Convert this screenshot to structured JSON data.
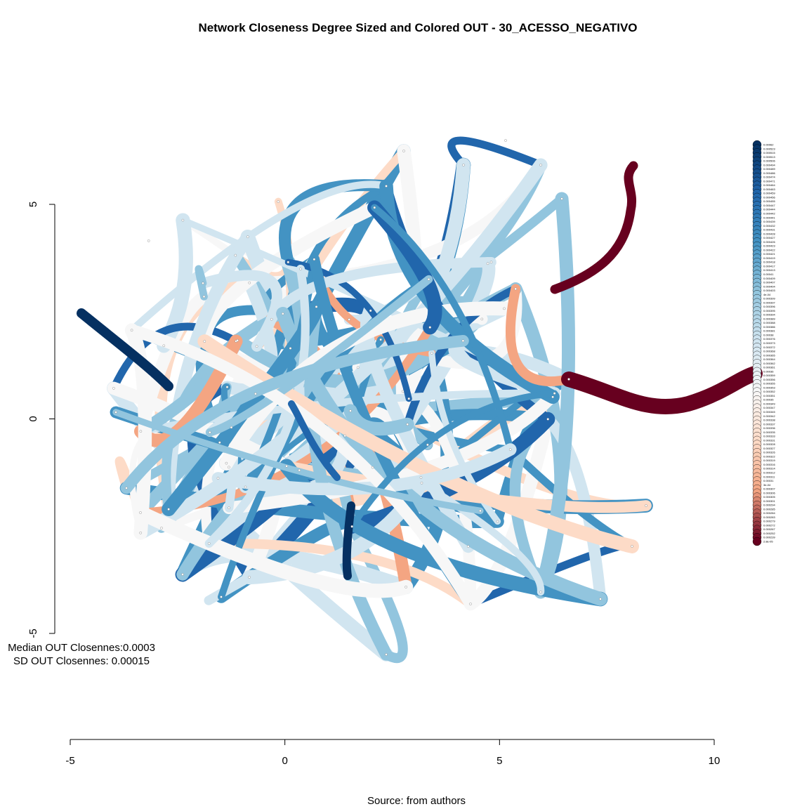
{
  "chart_data": {
    "type": "network",
    "title": "Network Closeness Degree Sized and Colored OUT - 30_ACESSO_NEGATIVO",
    "x_axis": {
      "ticks": [
        "-5",
        "0",
        "5",
        "10"
      ],
      "range": [
        -5,
        10
      ]
    },
    "y_axis": {
      "ticks": [
        "-5",
        "0",
        "5"
      ],
      "range": [
        -5,
        5
      ]
    },
    "stats": {
      "median_label": "Median OUT Closennes:0.0003",
      "sd_label": "SD OUT Closennes: 0.00015"
    },
    "caption": "Source: from authors",
    "legend_position": "right",
    "legend": [
      "0.00062",
      "0.000523",
      "0.000515",
      "0.000513",
      "0.000506",
      "0.000494",
      "0.000489",
      "0.000486",
      "0.000474",
      "0.000471",
      "0.000464",
      "0.000463",
      "0.000459",
      "0.000456",
      "0.000455",
      "0.000447",
      "0.000444",
      "0.000442",
      "0.000441",
      "0.000439",
      "0.000432",
      "0.000431",
      "0.000428",
      "0.000427",
      "0.000426",
      "0.000423",
      "0.000422",
      "0.000421",
      "0.000419",
      "0.000418",
      "0.000417",
      "0.000413",
      "0.00041",
      "0.000409",
      "0.000407",
      "0.000404",
      "0.000403",
      "4e-04",
      "0.000399",
      "0.000397",
      "0.000396",
      "0.000395",
      "0.000394",
      "0.000389",
      "0.000388",
      "0.000386",
      "0.000381",
      "0.00038",
      "0.000376",
      "0.000373",
      "0.000372",
      "0.000368",
      "0.000365",
      "0.000364",
      "0.000362",
      "0.000361",
      "0.00036",
      "0.000359",
      "0.000356",
      "0.000355",
      "0.000353",
      "0.000352",
      "0.000351",
      "0.00035",
      "0.000349",
      "0.000347",
      "0.000345",
      "0.000342",
      "0.000338",
      "0.000337",
      "0.000336",
      "0.000335",
      "0.000333",
      "0.000331",
      "0.000328",
      "0.000327",
      "0.000326",
      "0.000322",
      "0.000319",
      "0.000316",
      "0.000314",
      "0.000312",
      "0.000311",
      "0.00031",
      "3e-04",
      "0.000307",
      "0.000306",
      "0.000305",
      "0.000301",
      "0.000294",
      "0.000285",
      "0.000284",
      "0.000283",
      "0.000279",
      "0.000272",
      "0.000267",
      "0.000252",
      "0.000239",
      "2.8e-05"
    ],
    "palette": [
      "#053061",
      "#2166ac",
      "#4393c3",
      "#92c5de",
      "#d1e5f0",
      "#f7f7f7",
      "#fddbc7",
      "#f4a582",
      "#67001f"
    ]
  }
}
